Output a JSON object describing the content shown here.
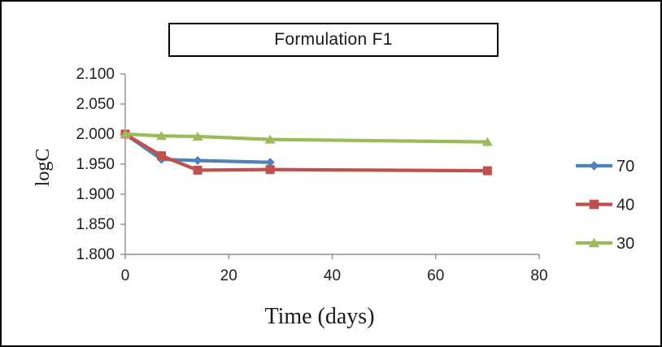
{
  "window": {
    "background_color": "#ffffff",
    "frame_border_color": "#000000"
  },
  "chart_data": {
    "type": "line",
    "title": "Formulation F1",
    "xlabel": "Time (days)",
    "ylabel": "logC",
    "xlim": [
      0,
      80
    ],
    "ylim": [
      1.8,
      2.1
    ],
    "xticks": [
      0,
      20,
      40,
      60,
      80
    ],
    "ytick_labels": [
      "2.100",
      "2.050",
      "2.000",
      "1.950",
      "1.900",
      "1.850",
      "1.800"
    ],
    "grid": false,
    "legend_position": "right",
    "series": [
      {
        "name": "70",
        "color": "#4f81bd",
        "marker": "diamond",
        "x": [
          0,
          7,
          14,
          28
        ],
        "y": [
          2.0,
          1.958,
          1.956,
          1.953
        ]
      },
      {
        "name": "40",
        "color": "#c0504d",
        "marker": "square",
        "x": [
          0,
          7,
          14,
          28,
          70
        ],
        "y": [
          2.0,
          1.964,
          1.94,
          1.941,
          1.939
        ]
      },
      {
        "name": "30",
        "color": "#9bbb59",
        "marker": "triangle",
        "x": [
          0,
          7,
          14,
          28,
          70
        ],
        "y": [
          2.0,
          1.997,
          1.996,
          1.991,
          1.987
        ]
      }
    ],
    "style": {
      "axis_color": "#8e8e8e",
      "tick_label_color": "#1f1f1f",
      "axis_title_color": "#1a1a1a"
    }
  }
}
